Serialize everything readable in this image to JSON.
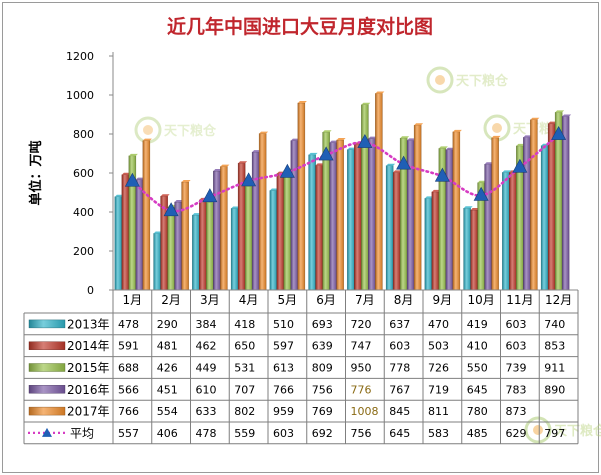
{
  "chart_data": {
    "type": "bar",
    "title": "近几年中国进口大豆月度对比图",
    "ylabel": "单位：万吨",
    "ylim": [
      0,
      1200
    ],
    "yticks": [
      0,
      200,
      400,
      600,
      800,
      1000,
      1200
    ],
    "grid": false,
    "legend_placement": "data-table-left",
    "categories": [
      "1月",
      "2月",
      "3月",
      "4月",
      "5月",
      "6月",
      "7月",
      "8月",
      "9月",
      "10月",
      "11月",
      "12月"
    ],
    "series": [
      {
        "name": "2013年",
        "kind": "bar",
        "color": "#2fb3c9",
        "values": [
          478,
          290,
          384,
          418,
          510,
          693,
          720,
          637,
          470,
          419,
          603,
          740
        ]
      },
      {
        "name": "2014年",
        "kind": "bar",
        "color": "#c0392b",
        "values": [
          591,
          481,
          462,
          650,
          597,
          639,
          747,
          603,
          503,
          410,
          603,
          853
        ]
      },
      {
        "name": "2015年",
        "kind": "bar",
        "color": "#98c14a",
        "values": [
          688,
          426,
          449,
          531,
          613,
          809,
          950,
          778,
          726,
          550,
          739,
          911
        ]
      },
      {
        "name": "2016年",
        "kind": "bar",
        "color": "#7b5aa6",
        "values": [
          566,
          451,
          610,
          707,
          766,
          756,
          776,
          767,
          719,
          645,
          783,
          890
        ]
      },
      {
        "name": "2017年",
        "kind": "bar",
        "color": "#f08c2a",
        "values": [
          766,
          554,
          633,
          802,
          959,
          769,
          1008,
          845,
          811,
          780,
          873,
          null
        ]
      },
      {
        "name": "平均",
        "kind": "line",
        "color": "#d63cc3",
        "marker_color": "#1f5fb5",
        "values": [
          557,
          406,
          478,
          559,
          603,
          692,
          756,
          645,
          583,
          485,
          629,
          797
        ]
      }
    ],
    "highlighted_cells": [
      {
        "series": 3,
        "index": 6
      },
      {
        "series": 4,
        "index": 6
      }
    ]
  },
  "watermark": {
    "text": "天下粮仓",
    "logo": "cofeed-logo"
  }
}
